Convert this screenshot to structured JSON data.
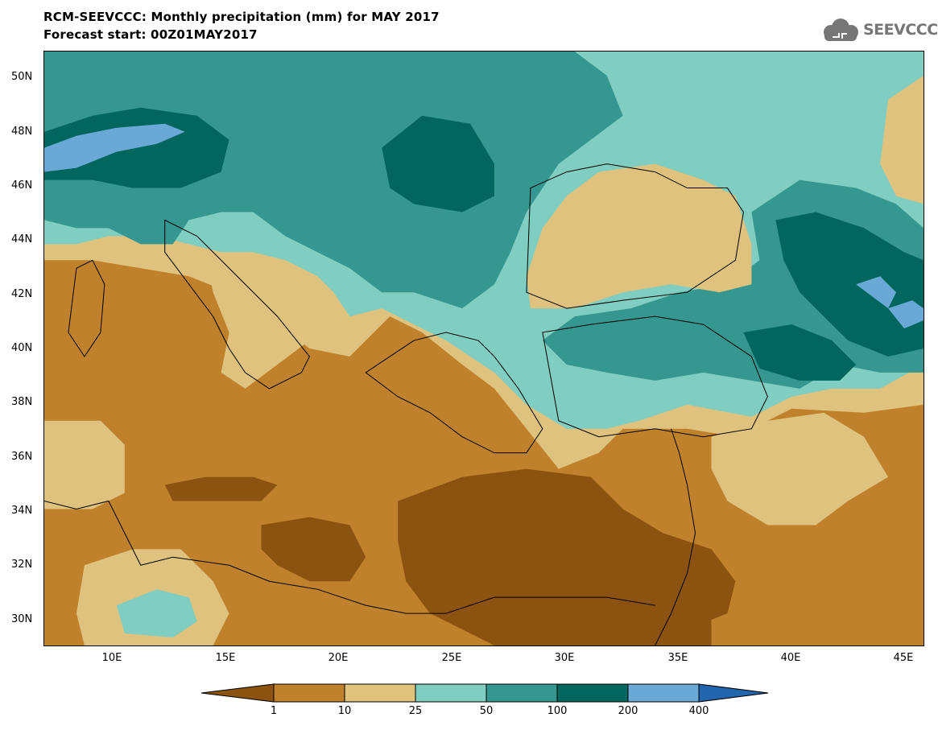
{
  "title": {
    "line1": "RCM-SEEVCCC: Monthly precipitation (mm) for MAY 2017",
    "line2": "Forecast start: 00Z01MAY2017"
  },
  "logo": {
    "text": "SEEVCCC",
    "icon": "cloud-logo-icon"
  },
  "map": {
    "lat_labels": [
      "50N",
      "48N",
      "46N",
      "44N",
      "42N",
      "40N",
      "38N",
      "36N",
      "34N",
      "32N",
      "30N"
    ],
    "lon_labels": [
      "10E",
      "15E",
      "20E",
      "25E",
      "30E",
      "35E",
      "40E",
      "45E"
    ]
  },
  "colorbar": {
    "labels": [
      "1",
      "10",
      "25",
      "50",
      "100",
      "200",
      "400"
    ],
    "colors": {
      "below_1": "#8c5310",
      "c1_10": "#bf812c",
      "c10_25": "#dfc27d",
      "c25_50": "#80cdc1",
      "c50_100": "#35978f",
      "c100_200": "#01665e",
      "c200_400": "#6aa9d5",
      "above_400": "#2166ac"
    }
  }
}
